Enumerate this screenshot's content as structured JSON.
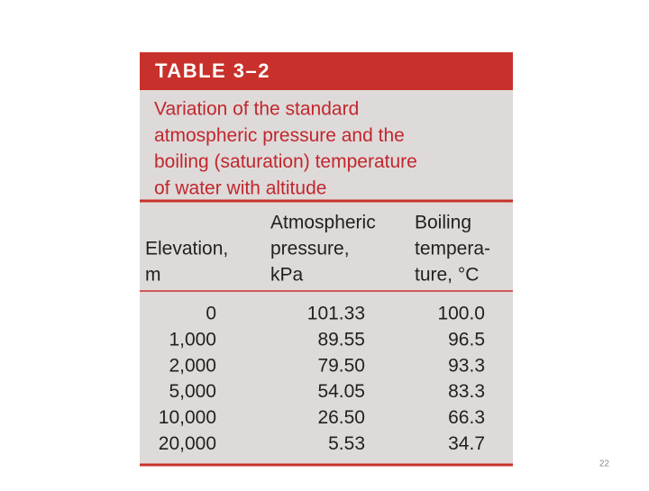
{
  "table": {
    "label": "TABLE 3–2",
    "caption": [
      "Variation of the standard",
      "atmospheric pressure and the",
      "boiling (saturation) temperature",
      "of water with altitude"
    ],
    "headers": [
      [
        "Elevation,",
        "m"
      ],
      [
        "Atmospheric",
        "pressure,",
        "kPa"
      ],
      [
        "Boiling",
        "tempera-",
        "ture, °C"
      ]
    ],
    "rows": [
      [
        "0",
        "101.33",
        "100.0"
      ],
      [
        "1,000",
        "89.55",
        "96.5"
      ],
      [
        "2,000",
        "79.50",
        "93.3"
      ],
      [
        "5,000",
        "54.05",
        "83.3"
      ],
      [
        "10,000",
        "26.50",
        "66.3"
      ],
      [
        "20,000",
        "5.53",
        "34.7"
      ]
    ]
  },
  "page_number": "22"
}
